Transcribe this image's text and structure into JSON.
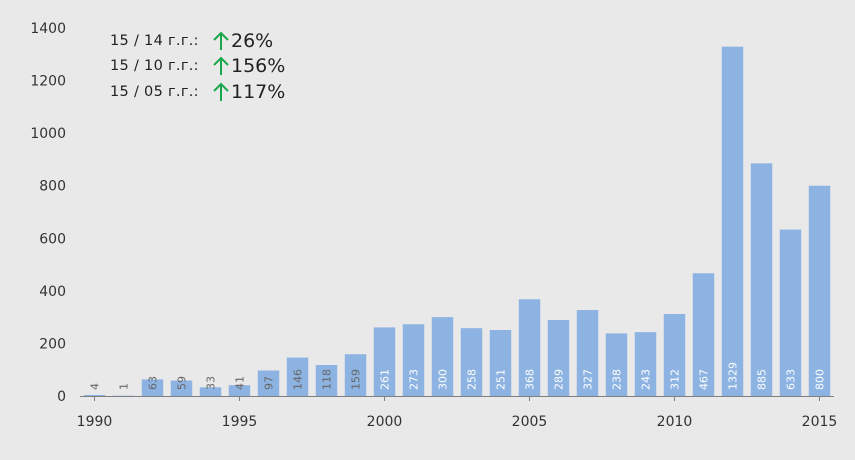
{
  "chart_data": {
    "type": "bar",
    "x": [
      1990,
      1991,
      1992,
      1993,
      1994,
      1995,
      1996,
      1997,
      1998,
      1999,
      2000,
      2001,
      2002,
      2003,
      2004,
      2005,
      2006,
      2007,
      2008,
      2009,
      2010,
      2011,
      2012,
      2013,
      2014,
      2015
    ],
    "values": [
      4,
      1,
      63,
      59,
      33,
      41,
      97,
      146,
      118,
      159,
      261,
      273,
      300,
      258,
      251,
      368,
      289,
      327,
      238,
      243,
      312,
      467,
      1329,
      885,
      633,
      800
    ],
    "data_labels": [
      "4",
      "1",
      "63",
      "59",
      "33",
      "41",
      "97",
      "146",
      "118",
      "159",
      "261",
      "273",
      "300",
      "258",
      "251",
      "368",
      "289",
      "327",
      "238",
      "243",
      "312",
      "467",
      "1329",
      "885",
      "633",
      "800"
    ],
    "x_tick_labels": [
      "1990",
      "1995",
      "2000",
      "2005",
      "2010",
      "2015"
    ],
    "y_tick_labels": [
      "0",
      "200",
      "400",
      "600",
      "800",
      "1000",
      "1200",
      "1400"
    ],
    "ylim": [
      0,
      1400
    ],
    "grid": false,
    "bar_color": "#8db3e2",
    "title": "",
    "xlabel": "",
    "ylabel": ""
  },
  "annotations": [
    {
      "label": "15 / 14 г.г.:",
      "value": "26%",
      "direction": "up",
      "icon": "up-arrow-icon"
    },
    {
      "label": "15 / 10 г.г.:",
      "value": "156%",
      "direction": "up",
      "icon": "up-arrow-icon"
    },
    {
      "label": "15 / 05 г.г.:",
      "value": "117%",
      "direction": "up",
      "icon": "up-arrow-icon"
    }
  ],
  "colors": {
    "background": "#e9e9e9",
    "axis": "#7f7f7f",
    "arrow_up": "#1aa64a",
    "label_inside": "#ffffff",
    "label_small": "#666666"
  }
}
